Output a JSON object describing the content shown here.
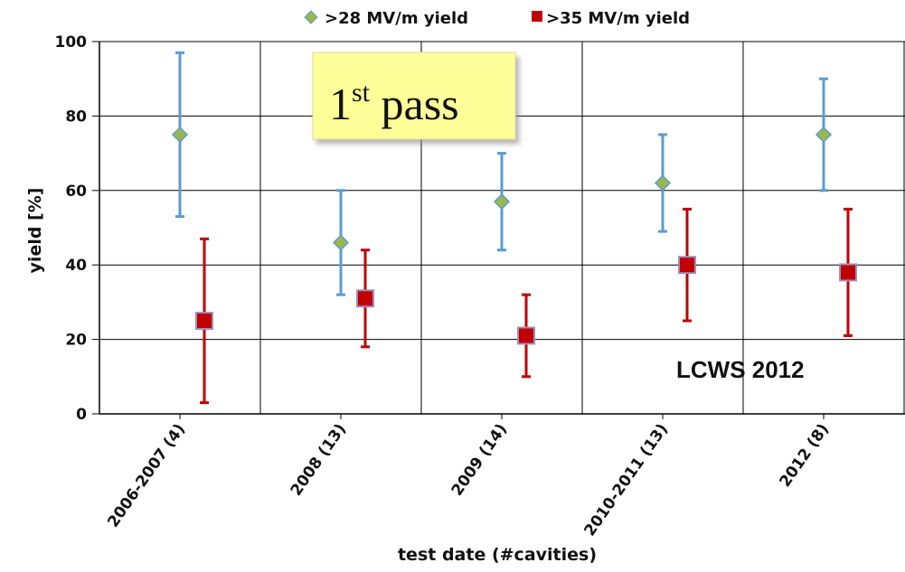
{
  "chart_data": {
    "type": "scatter",
    "title": "",
    "xlabel": "test date (#cavities)",
    "ylabel": "yield [%]",
    "categories": [
      "2006-2007 (4)",
      "2008 (13)",
      "2009 (14)",
      "2010-2011 (13)",
      "2012 (8)"
    ],
    "ylim": [
      0,
      100
    ],
    "yticks": [
      0,
      20,
      40,
      60,
      80,
      100
    ],
    "grid": true,
    "legend_position": "top",
    "series": [
      {
        "name": ">28 MV/m yield",
        "marker": "diamond",
        "color": "#9ab84a",
        "error_color": "#5b9bd5",
        "values": [
          75,
          46,
          57,
          62,
          75
        ],
        "err_low": [
          53,
          32,
          44,
          49,
          60
        ],
        "err_high": [
          97,
          60,
          70,
          75,
          90
        ]
      },
      {
        "name": ">35 MV/m yield",
        "marker": "square",
        "color": "#c00000",
        "error_color": "#c00000",
        "values": [
          25,
          31,
          21,
          40,
          38
        ],
        "err_low": [
          3,
          18,
          10,
          25,
          21
        ],
        "err_high": [
          47,
          44,
          32,
          55,
          55
        ]
      }
    ],
    "annotations": {
      "pass_box": {
        "main": "1",
        "sup": "st",
        "rest": " pass",
        "fill": "#ffff99"
      },
      "conference": "LCWS 2012"
    }
  }
}
